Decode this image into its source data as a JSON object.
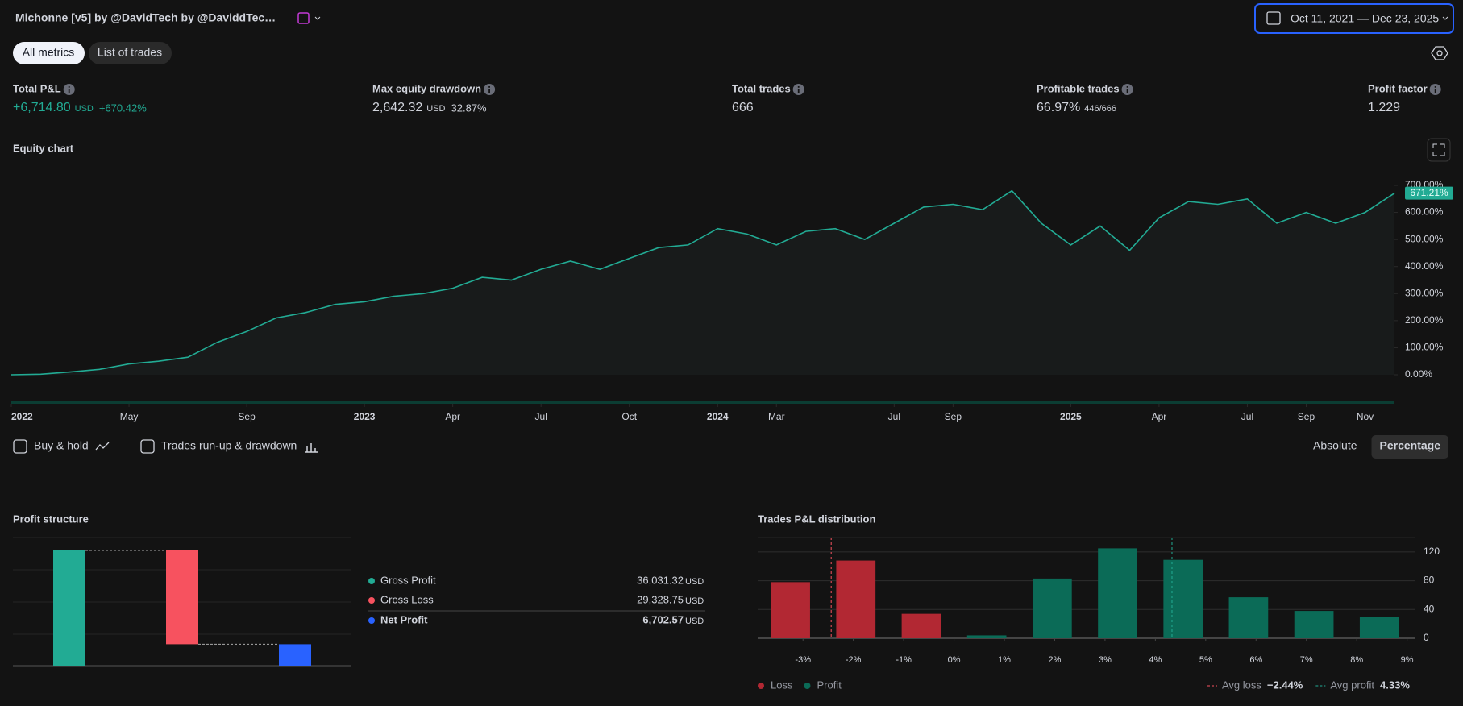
{
  "header": {
    "title": "Michonne [v5] by @DavidTech  by @DaviddTec…",
    "date_range": "Oct 11, 2021 — Dec 23, 2025"
  },
  "tabs": [
    "All metrics",
    "List of trades"
  ],
  "metrics": [
    {
      "label": "Total P&L",
      "value": "+6,714.80",
      "unit": "USD",
      "extra": "+670.42%"
    },
    {
      "label": "Max equity drawdown",
      "value": "2,642.32",
      "unit": "USD",
      "extra": "32.87%"
    },
    {
      "label": "Total trades",
      "value": "666"
    },
    {
      "label": "Profitable trades",
      "value": "66.97%",
      "extra": "446/666"
    },
    {
      "label": "Profit factor",
      "value": "1.229"
    }
  ],
  "equity_chart": {
    "type": "line",
    "title": "Equity chart",
    "color": "#22ab94",
    "x": [
      "2022-01",
      "2022-02",
      "2022-03",
      "2022-04",
      "2022-05",
      "2022-06",
      "2022-07",
      "2022-08",
      "2022-09",
      "2022-10",
      "2022-11",
      "2022-12",
      "2023-01",
      "2023-02",
      "2023-03",
      "2023-04",
      "2023-05",
      "2023-06",
      "2023-07",
      "2023-08",
      "2023-09",
      "2023-10",
      "2023-11",
      "2023-12",
      "2024-01",
      "2024-02",
      "2024-03",
      "2024-04",
      "2024-05",
      "2024-06",
      "2024-07",
      "2024-08",
      "2024-09",
      "2024-10",
      "2024-11",
      "2024-12",
      "2025-01",
      "2025-02",
      "2025-03",
      "2025-04",
      "2025-05",
      "2025-06",
      "2025-07",
      "2025-08",
      "2025-09",
      "2025-10",
      "2025-11",
      "2025-12"
    ],
    "values": [
      0,
      2,
      10,
      20,
      40,
      50,
      65,
      120,
      160,
      210,
      230,
      260,
      270,
      290,
      300,
      320,
      360,
      350,
      390,
      420,
      390,
      430,
      470,
      480,
      540,
      520,
      480,
      530,
      540,
      500,
      560,
      620,
      630,
      610,
      680,
      560,
      480,
      550,
      460,
      580,
      640,
      630,
      650,
      560,
      600,
      560,
      600,
      671.21
    ],
    "last_label": "671.21%",
    "ylim": [
      0,
      700
    ],
    "yticks": [
      {
        "value": 0,
        "label": "0.00%"
      },
      {
        "value": 100,
        "label": "100.00%"
      },
      {
        "value": 200,
        "label": "200.00%"
      },
      {
        "value": 300,
        "label": "300.00%"
      },
      {
        "value": 400,
        "label": "400.00%"
      },
      {
        "value": 500,
        "label": "500.00%"
      },
      {
        "value": 600,
        "label": "600.00%"
      },
      {
        "value": 700,
        "label": "700.00%"
      }
    ],
    "xticks": [
      {
        "value": "2022-01",
        "label": "2022"
      },
      {
        "value": "2022-05",
        "label": "May"
      },
      {
        "value": "2022-09",
        "label": "Sep"
      },
      {
        "value": "2023-01",
        "label": "2023"
      },
      {
        "value": "2023-04",
        "label": "Apr"
      },
      {
        "value": "2023-07",
        "label": "Jul"
      },
      {
        "value": "2023-10",
        "label": "Oct"
      },
      {
        "value": "2024-01",
        "label": "2024"
      },
      {
        "value": "2024-03",
        "label": "Mar"
      },
      {
        "value": "2024-07",
        "label": "Jul"
      },
      {
        "value": "2024-09",
        "label": "Sep"
      },
      {
        "value": "2025-01",
        "label": "2025"
      },
      {
        "value": "2025-04",
        "label": "Apr"
      },
      {
        "value": "2025-07",
        "label": "Jul"
      },
      {
        "value": "2025-09",
        "label": "Sep"
      },
      {
        "value": "2025-11",
        "label": "Nov"
      }
    ]
  },
  "options": {
    "checkboxes": [
      "Buy & hold",
      "Trades run-up & drawdown"
    ],
    "modes": [
      "Absolute",
      "Percentage"
    ],
    "active_mode": 1
  },
  "profit_structure": {
    "type": "waterfall",
    "title": "Profit structure",
    "currency": "USD",
    "items": [
      {
        "name": "Gross Profit",
        "value": 36031.32,
        "label": "36,031.32",
        "color": "#22ab94"
      },
      {
        "name": "Gross Loss",
        "value": 29328.75,
        "label": "29,328.75",
        "color": "#f7525f"
      },
      {
        "name": "Net Profit",
        "value": 6702.57,
        "label": "6,702.57",
        "color": "#2962ff"
      }
    ]
  },
  "distribution": {
    "type": "histogram",
    "title": "Trades P&L distribution",
    "bins": [
      -3.9,
      -2.6,
      -1.3,
      0,
      1.3,
      2.6,
      3.9,
      5.2,
      6.5,
      7.8,
      9.1
    ],
    "counts": [
      78,
      108,
      34,
      4,
      83,
      125,
      109,
      57,
      38,
      30
    ],
    "xlim": [
      -3.9,
      9.15
    ],
    "xticks": [
      {
        "value": -3,
        "label": "-3%"
      },
      {
        "value": -2,
        "label": "-2%"
      },
      {
        "value": -1,
        "label": "-1%"
      },
      {
        "value": 0,
        "label": "0%"
      },
      {
        "value": 1,
        "label": "1%"
      },
      {
        "value": 2,
        "label": "2%"
      },
      {
        "value": 3,
        "label": "3%"
      },
      {
        "value": 4,
        "label": "4%"
      },
      {
        "value": 5,
        "label": "5%"
      },
      {
        "value": 6,
        "label": "6%"
      },
      {
        "value": 7,
        "label": "7%"
      },
      {
        "value": 8,
        "label": "8%"
      },
      {
        "value": 9,
        "label": "9%"
      }
    ],
    "ylim": [
      0,
      140
    ],
    "yticks": [
      0,
      40,
      80,
      120
    ],
    "legend": [
      {
        "name": "Loss",
        "color": "#b22833"
      },
      {
        "name": "Profit",
        "color": "#0b6b57"
      }
    ],
    "avg_loss": {
      "name": "Avg loss",
      "value": -2.44,
      "label": "−2.44%",
      "color": "#f7525f"
    },
    "avg_profit": {
      "name": "Avg profit",
      "value": 4.33,
      "label": "4.33%",
      "color": "#22ab94"
    }
  }
}
